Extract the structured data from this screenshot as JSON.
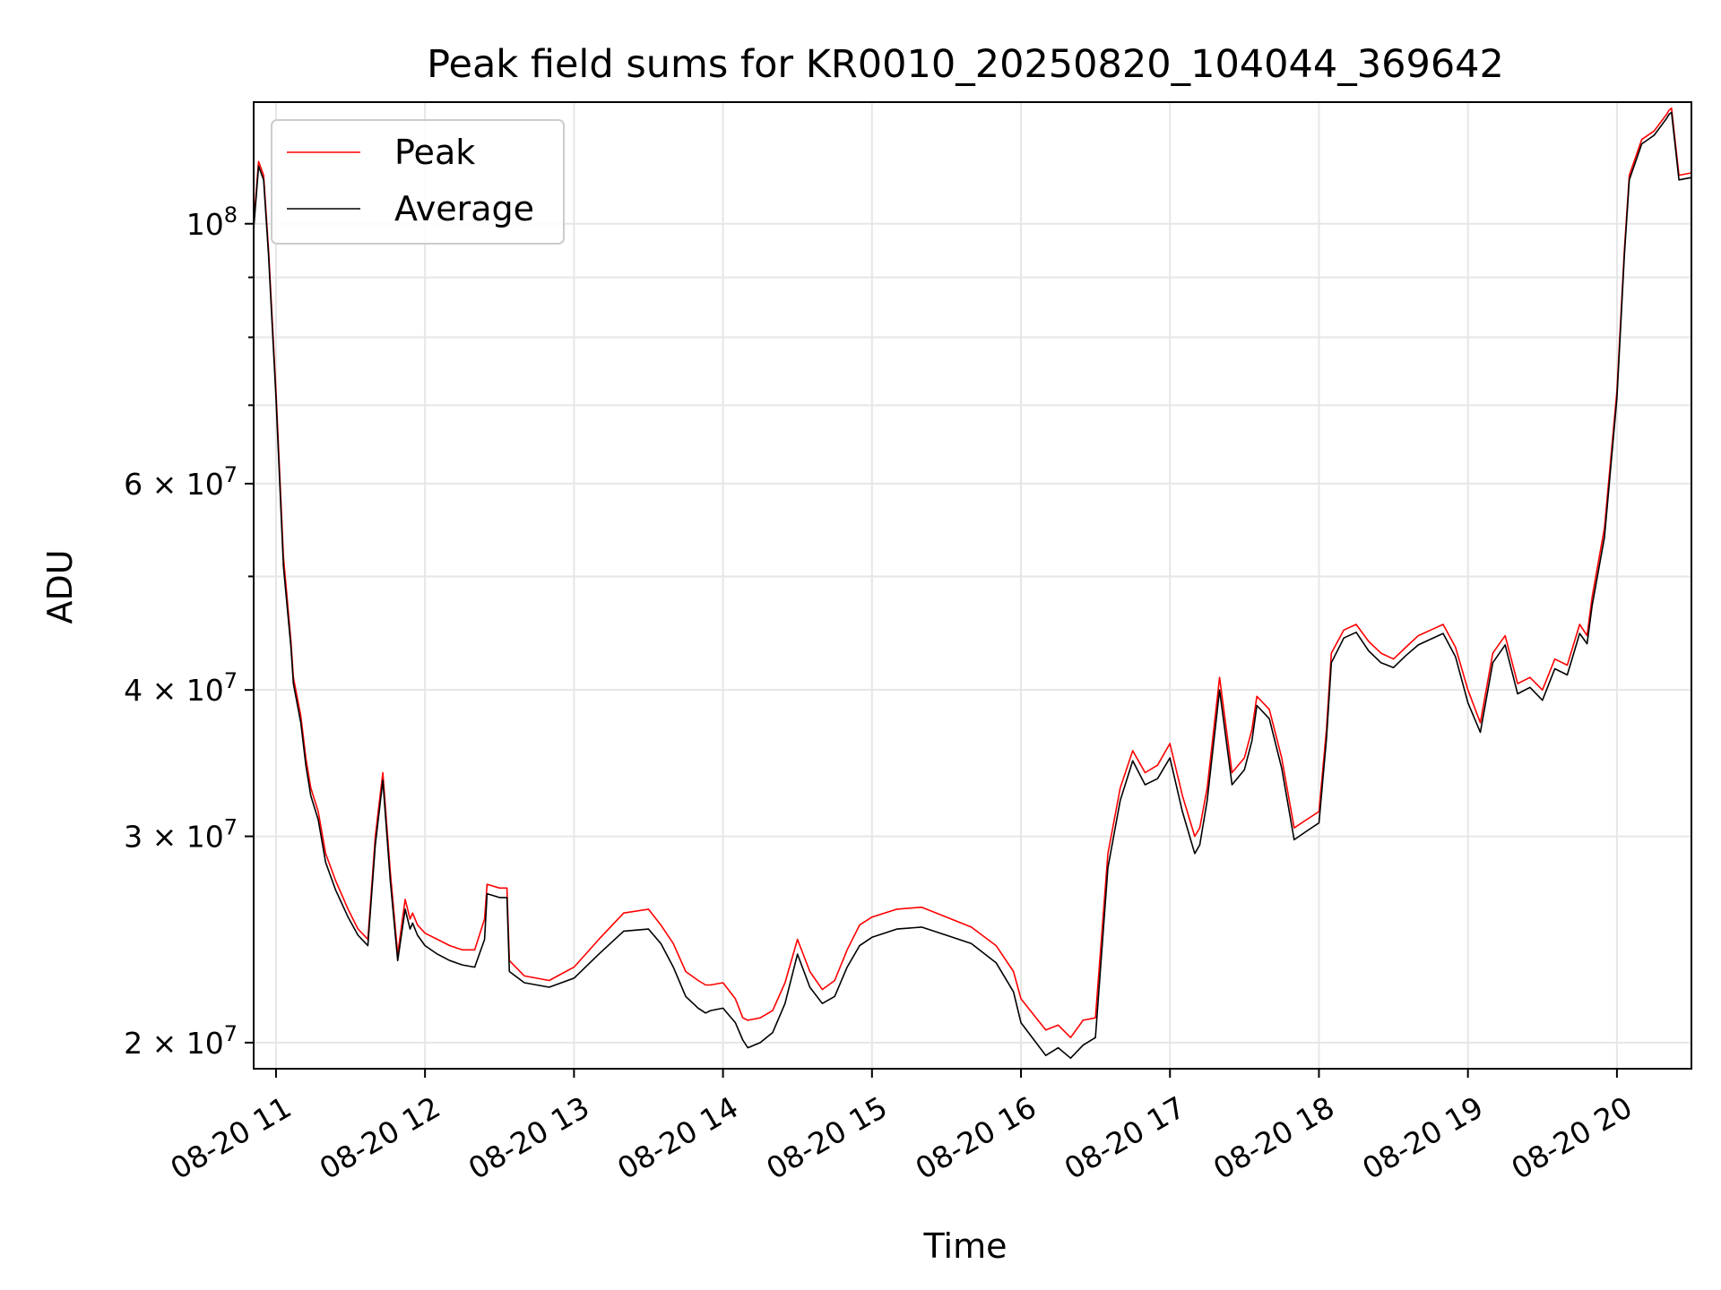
{
  "chart_data": {
    "type": "line",
    "title": "Peak field sums for KR0010_20250820_104044_369642",
    "xlabel": "Time",
    "ylabel": "ADU",
    "y_scale": "log",
    "xlim": [
      "2025-08-20T10:51",
      "2025-08-20T20:30"
    ],
    "ylim": [
      19000000,
      127000000
    ],
    "grid": true,
    "legend_position": "top-left",
    "x_ticks": [
      {
        "value": "2025-08-20T11:00",
        "label": "08-20 11"
      },
      {
        "value": "2025-08-20T12:00",
        "label": "08-20 12"
      },
      {
        "value": "2025-08-20T13:00",
        "label": "08-20 13"
      },
      {
        "value": "2025-08-20T14:00",
        "label": "08-20 14"
      },
      {
        "value": "2025-08-20T15:00",
        "label": "08-20 15"
      },
      {
        "value": "2025-08-20T16:00",
        "label": "08-20 16"
      },
      {
        "value": "2025-08-20T17:00",
        "label": "08-20 17"
      },
      {
        "value": "2025-08-20T18:00",
        "label": "08-20 18"
      },
      {
        "value": "2025-08-20T19:00",
        "label": "08-20 19"
      },
      {
        "value": "2025-08-20T20:00",
        "label": "08-20 20"
      }
    ],
    "y_ticks": [
      {
        "value": 20000000,
        "mantissa": "2",
        "times": "×",
        "base": "10",
        "exp": "7"
      },
      {
        "value": 30000000,
        "mantissa": "3",
        "times": "×",
        "base": "10",
        "exp": "7"
      },
      {
        "value": 40000000,
        "mantissa": "4",
        "times": "×",
        "base": "10",
        "exp": "7"
      },
      {
        "value": 60000000,
        "mantissa": "6",
        "times": "×",
        "base": "10",
        "exp": "7"
      },
      {
        "value": 100000000,
        "mantissa": "",
        "times": "",
        "base": "10",
        "exp": "8"
      }
    ],
    "y_minor_ticks": [
      50000000,
      70000000,
      80000000,
      90000000
    ],
    "series": [
      {
        "name": "Peak",
        "color": "#ff0000",
        "x": [
          "2025-08-20T10:51",
          "2025-08-20T10:53",
          "2025-08-20T10:55",
          "2025-08-20T10:57",
          "2025-08-20T11:00",
          "2025-08-20T11:03",
          "2025-08-20T11:06",
          "2025-08-20T11:07",
          "2025-08-20T11:10",
          "2025-08-20T11:12",
          "2025-08-20T11:14",
          "2025-08-20T11:17",
          "2025-08-20T11:20",
          "2025-08-20T11:24",
          "2025-08-20T11:29",
          "2025-08-20T11:33",
          "2025-08-20T11:37",
          "2025-08-20T11:40",
          "2025-08-20T11:43",
          "2025-08-20T11:46",
          "2025-08-20T11:49",
          "2025-08-20T11:52",
          "2025-08-20T11:54",
          "2025-08-20T11:55",
          "2025-08-20T11:57",
          "2025-08-20T12:00",
          "2025-08-20T12:05",
          "2025-08-20T12:10",
          "2025-08-20T12:15",
          "2025-08-20T12:20",
          "2025-08-20T12:24",
          "2025-08-20T12:25",
          "2025-08-20T12:30",
          "2025-08-20T12:33",
          "2025-08-20T12:34",
          "2025-08-20T12:40",
          "2025-08-20T12:50",
          "2025-08-20T13:00",
          "2025-08-20T13:10",
          "2025-08-20T13:20",
          "2025-08-20T13:30",
          "2025-08-20T13:35",
          "2025-08-20T13:40",
          "2025-08-20T13:45",
          "2025-08-20T13:50",
          "2025-08-20T13:53",
          "2025-08-20T13:55",
          "2025-08-20T14:00",
          "2025-08-20T14:05",
          "2025-08-20T14:08",
          "2025-08-20T14:10",
          "2025-08-20T14:15",
          "2025-08-20T14:20",
          "2025-08-20T14:25",
          "2025-08-20T14:30",
          "2025-08-20T14:35",
          "2025-08-20T14:40",
          "2025-08-20T14:45",
          "2025-08-20T14:50",
          "2025-08-20T14:55",
          "2025-08-20T15:00",
          "2025-08-20T15:10",
          "2025-08-20T15:20",
          "2025-08-20T15:30",
          "2025-08-20T15:40",
          "2025-08-20T15:50",
          "2025-08-20T15:57",
          "2025-08-20T16:00",
          "2025-08-20T16:10",
          "2025-08-20T16:15",
          "2025-08-20T16:20",
          "2025-08-20T16:25",
          "2025-08-20T16:30",
          "2025-08-20T16:35",
          "2025-08-20T16:40",
          "2025-08-20T16:45",
          "2025-08-20T16:50",
          "2025-08-20T16:55",
          "2025-08-20T17:00",
          "2025-08-20T17:05",
          "2025-08-20T17:10",
          "2025-08-20T17:12",
          "2025-08-20T17:15",
          "2025-08-20T17:20",
          "2025-08-20T17:25",
          "2025-08-20T17:30",
          "2025-08-20T17:33",
          "2025-08-20T17:35",
          "2025-08-20T17:40",
          "2025-08-20T17:45",
          "2025-08-20T17:50",
          "2025-08-20T17:55",
          "2025-08-20T18:00",
          "2025-08-20T18:03",
          "2025-08-20T18:05",
          "2025-08-20T18:10",
          "2025-08-20T18:15",
          "2025-08-20T18:20",
          "2025-08-20T18:25",
          "2025-08-20T18:30",
          "2025-08-20T18:35",
          "2025-08-20T18:40",
          "2025-08-20T18:45",
          "2025-08-20T18:50",
          "2025-08-20T18:55",
          "2025-08-20T19:00",
          "2025-08-20T19:05",
          "2025-08-20T19:10",
          "2025-08-20T19:15",
          "2025-08-20T19:20",
          "2025-08-20T19:25",
          "2025-08-20T19:30",
          "2025-08-20T19:35",
          "2025-08-20T19:40",
          "2025-08-20T19:45",
          "2025-08-20T19:48",
          "2025-08-20T19:50",
          "2025-08-20T19:55",
          "2025-08-20T20:00",
          "2025-08-20T20:03",
          "2025-08-20T20:05",
          "2025-08-20T20:10",
          "2025-08-20T20:15",
          "2025-08-20T20:20",
          "2025-08-20T20:21",
          "2025-08-20T20:22",
          "2025-08-20T20:25",
          "2025-08-20T20:30"
        ],
        "values": [
          100000000,
          113000000,
          110000000,
          95000000,
          72000000,
          52000000,
          44000000,
          41000000,
          38000000,
          35000000,
          33000000,
          31500000,
          29000000,
          27500000,
          26000000,
          25000000,
          24500000,
          30000000,
          34000000,
          28000000,
          23800000,
          26500000,
          25500000,
          25800000,
          25200000,
          24800000,
          24500000,
          24200000,
          24000000,
          24000000,
          25500000,
          27300000,
          27100000,
          27100000,
          23500000,
          22800000,
          22600000,
          23200000,
          24500000,
          25800000,
          26000000,
          25200000,
          24300000,
          23000000,
          22600000,
          22400000,
          22400000,
          22500000,
          21800000,
          21000000,
          20900000,
          21000000,
          21300000,
          22500000,
          24500000,
          23000000,
          22200000,
          22600000,
          24000000,
          25200000,
          25600000,
          26000000,
          26100000,
          25600000,
          25100000,
          24200000,
          23000000,
          21800000,
          20500000,
          20700000,
          20200000,
          20900000,
          21000000,
          29000000,
          33000000,
          35500000,
          34000000,
          34500000,
          36000000,
          32500000,
          30000000,
          30500000,
          33000000,
          41000000,
          34000000,
          35000000,
          37000000,
          39500000,
          38500000,
          35000000,
          30500000,
          31000000,
          31500000,
          37000000,
          43000000,
          45000000,
          45500000,
          44000000,
          43000000,
          42500000,
          43500000,
          44500000,
          45000000,
          45500000,
          43500000,
          40000000,
          37500000,
          43000000,
          44500000,
          40500000,
          41000000,
          40000000,
          42500000,
          42000000,
          45500000,
          44500000,
          48000000,
          55000000,
          72000000,
          95000000,
          110000000,
          118000000,
          120000000,
          124000000,
          125000000,
          125500000,
          110000000,
          110500000
        ]
      },
      {
        "name": "Average",
        "color": "#000000",
        "x": [
          "2025-08-20T10:51",
          "2025-08-20T10:53",
          "2025-08-20T10:55",
          "2025-08-20T10:57",
          "2025-08-20T11:00",
          "2025-08-20T11:03",
          "2025-08-20T11:06",
          "2025-08-20T11:07",
          "2025-08-20T11:10",
          "2025-08-20T11:12",
          "2025-08-20T11:14",
          "2025-08-20T11:17",
          "2025-08-20T11:20",
          "2025-08-20T11:24",
          "2025-08-20T11:29",
          "2025-08-20T11:33",
          "2025-08-20T11:37",
          "2025-08-20T11:40",
          "2025-08-20T11:43",
          "2025-08-20T11:46",
          "2025-08-20T11:49",
          "2025-08-20T11:52",
          "2025-08-20T11:54",
          "2025-08-20T11:55",
          "2025-08-20T11:57",
          "2025-08-20T12:00",
          "2025-08-20T12:05",
          "2025-08-20T12:10",
          "2025-08-20T12:15",
          "2025-08-20T12:20",
          "2025-08-20T12:24",
          "2025-08-20T12:25",
          "2025-08-20T12:30",
          "2025-08-20T12:33",
          "2025-08-20T12:34",
          "2025-08-20T12:40",
          "2025-08-20T12:50",
          "2025-08-20T13:00",
          "2025-08-20T13:10",
          "2025-08-20T13:20",
          "2025-08-20T13:30",
          "2025-08-20T13:35",
          "2025-08-20T13:40",
          "2025-08-20T13:45",
          "2025-08-20T13:50",
          "2025-08-20T13:53",
          "2025-08-20T13:55",
          "2025-08-20T14:00",
          "2025-08-20T14:05",
          "2025-08-20T14:08",
          "2025-08-20T14:10",
          "2025-08-20T14:15",
          "2025-08-20T14:20",
          "2025-08-20T14:25",
          "2025-08-20T14:30",
          "2025-08-20T14:35",
          "2025-08-20T14:40",
          "2025-08-20T14:45",
          "2025-08-20T14:50",
          "2025-08-20T14:55",
          "2025-08-20T15:00",
          "2025-08-20T15:10",
          "2025-08-20T15:20",
          "2025-08-20T15:30",
          "2025-08-20T15:40",
          "2025-08-20T15:50",
          "2025-08-20T15:57",
          "2025-08-20T16:00",
          "2025-08-20T16:10",
          "2025-08-20T16:15",
          "2025-08-20T16:20",
          "2025-08-20T16:25",
          "2025-08-20T16:30",
          "2025-08-20T16:35",
          "2025-08-20T16:40",
          "2025-08-20T16:45",
          "2025-08-20T16:50",
          "2025-08-20T16:55",
          "2025-08-20T17:00",
          "2025-08-20T17:05",
          "2025-08-20T17:10",
          "2025-08-20T17:12",
          "2025-08-20T17:15",
          "2025-08-20T17:20",
          "2025-08-20T17:25",
          "2025-08-20T17:30",
          "2025-08-20T17:33",
          "2025-08-20T17:35",
          "2025-08-20T17:40",
          "2025-08-20T17:45",
          "2025-08-20T17:50",
          "2025-08-20T17:55",
          "2025-08-20T18:00",
          "2025-08-20T18:03",
          "2025-08-20T18:05",
          "2025-08-20T18:10",
          "2025-08-20T18:15",
          "2025-08-20T18:20",
          "2025-08-20T18:25",
          "2025-08-20T18:30",
          "2025-08-20T18:35",
          "2025-08-20T18:40",
          "2025-08-20T18:45",
          "2025-08-20T18:50",
          "2025-08-20T18:55",
          "2025-08-20T19:00",
          "2025-08-20T19:05",
          "2025-08-20T19:10",
          "2025-08-20T19:15",
          "2025-08-20T19:20",
          "2025-08-20T19:25",
          "2025-08-20T19:30",
          "2025-08-20T19:35",
          "2025-08-20T19:40",
          "2025-08-20T19:45",
          "2025-08-20T19:48",
          "2025-08-20T19:50",
          "2025-08-20T19:55",
          "2025-08-20T20:00",
          "2025-08-20T20:03",
          "2025-08-20T20:05",
          "2025-08-20T20:10",
          "2025-08-20T20:15",
          "2025-08-20T20:20",
          "2025-08-20T20:21",
          "2025-08-20T20:22",
          "2025-08-20T20:25",
          "2025-08-20T20:30"
        ],
        "values": [
          99000000,
          112000000,
          109000000,
          94000000,
          71000000,
          51000000,
          43500000,
          40500000,
          37500000,
          34500000,
          32500000,
          31000000,
          28500000,
          27000000,
          25600000,
          24700000,
          24200000,
          29500000,
          33500000,
          27500000,
          23500000,
          26000000,
          25000000,
          25300000,
          24700000,
          24200000,
          23800000,
          23500000,
          23300000,
          23200000,
          24500000,
          26800000,
          26600000,
          26600000,
          23000000,
          22500000,
          22300000,
          22700000,
          23800000,
          24900000,
          25000000,
          24300000,
          23200000,
          21900000,
          21400000,
          21200000,
          21300000,
          21400000,
          20800000,
          20100000,
          19800000,
          20000000,
          20400000,
          21600000,
          23800000,
          22300000,
          21600000,
          21900000,
          23200000,
          24200000,
          24600000,
          25000000,
          25100000,
          24700000,
          24300000,
          23400000,
          22100000,
          20800000,
          19500000,
          19800000,
          19400000,
          19900000,
          20200000,
          28200000,
          32200000,
          34800000,
          33200000,
          33600000,
          35000000,
          31500000,
          29000000,
          29500000,
          32200000,
          40000000,
          33200000,
          34200000,
          36200000,
          38800000,
          37800000,
          34300000,
          29800000,
          30300000,
          30800000,
          36300000,
          42200000,
          44300000,
          44800000,
          43200000,
          42200000,
          41800000,
          42800000,
          43700000,
          44200000,
          44700000,
          42700000,
          39000000,
          36800000,
          42200000,
          43700000,
          39700000,
          40200000,
          39200000,
          41700000,
          41200000,
          44700000,
          43800000,
          47200000,
          54000000,
          71000000,
          94000000,
          109000000,
          117000000,
          119000000,
          123000000,
          124000000,
          124500000,
          109000000,
          109500000
        ]
      }
    ]
  }
}
